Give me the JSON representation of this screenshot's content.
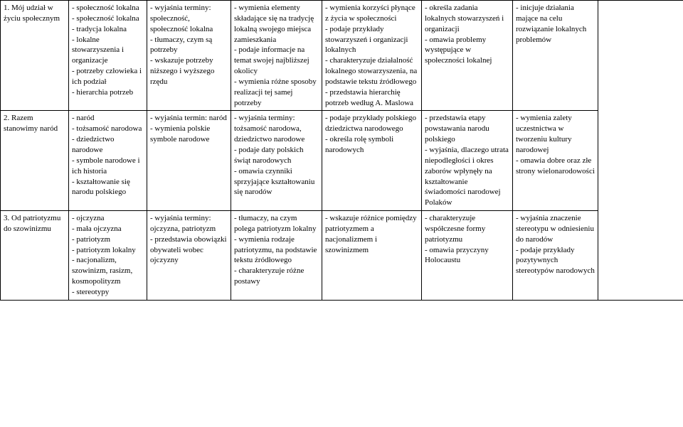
{
  "table": {
    "rows": [
      {
        "topic": "1. Mój udział w życiu społecznym",
        "c2": "- społeczność lokalna\n- społeczność lokalna\n- tradycja lokalna\n- lokalne stowarzyszenia i organizacje\n- potrzeby człowieka i ich podział\n- hierarchia potrzeb",
        "c3": "- wyjaśnia terminy: społeczność, społeczność lokalna\n- tłumaczy, czym są potrzeby\n- wskazuje potrzeby niższego i wyższego rzędu",
        "c4": "- wymienia elementy składające się na tradycję lokalną swojego miejsca zamieszkania\n- podaje informacje na temat swojej najbliższej okolicy\n- wymienia różne sposoby realizacji tej samej potrzeby",
        "c5": "- wymienia korzyści płynące z życia w społeczności\n- podaje przykłady stowarzyszeń i organizacji lokalnych\n- charakteryzuje działalność lokalnego stowarzyszenia, na podstawie tekstu źródłowego\n- przedstawia hierarchię potrzeb według A. Maslowa",
        "c6": "- określa zadania lokalnych stowarzyszeń i organizacji\n- omawia problemy występujące w społeczności lokalnej",
        "c7": "- inicjuje działania mające na celu rozwiązanie lokalnych problemów"
      },
      {
        "topic": "2. Razem stanowimy naród",
        "c2": "- naród\n- tożsamość narodowa\n- dziedzictwo narodowe\n- symbole narodowe i ich historia\n- kształtowanie się narodu polskiego",
        "c3": "- wyjaśnia termin: naród\n- wymienia polskie symbole narodowe",
        "c4": "- wyjaśnia terminy: tożsamość narodowa, dziedzictwo narodowe\n- podaje daty polskich świąt narodowych\n- omawia czynniki sprzyjające kształtowaniu się narodów",
        "c5": "- podaje przykłady polskiego dziedzictwa narodowego\n- określa rolę symboli narodowych",
        "c6": "- przedstawia etapy powstawania narodu polskiego\n- wyjaśnia, dlaczego utrata niepodległości i okres zaborów wpłynęły na kształtowanie świadomości narodowej Polaków",
        "c7": "- wymienia zalety uczestnictwa w tworzeniu kultury narodowej\n- omawia dobre oraz złe strony wielonarodowości"
      },
      {
        "topic": "3. Od patriotyzmu do szowinizmu",
        "c2": "- ojczyzna\n- mała ojczyzna\n- patriotyzm\n- patriotyzm lokalny\n- nacjonalizm, szowinizm, rasizm, kosmopolityzm\n- stereotypy",
        "c3": "- wyjaśnia terminy: ojczyzna, patriotyzm\n- przedstawia obowiązki obywateli wobec ojczyzny",
        "c4": "- tłumaczy, na czym polega patriotyzm lokalny\n- wymienia rodzaje patriotyzmu, na podstawie tekstu źródłowego\n- charakteryzuje różne postawy",
        "c5": "- wskazuje różnice pomiędzy patriotyzmem a nacjonalizmem i szowinizmem",
        "c6": "- charakteryzuje współczesne formy patriotyzmu\n- omawia przyczyny Holocaustu",
        "c7": "- wyjaśnia znaczenie stereotypu w odniesieniu do narodów\n- podaje przykłady pozytywnych stereotypów narodowych"
      }
    ]
  }
}
